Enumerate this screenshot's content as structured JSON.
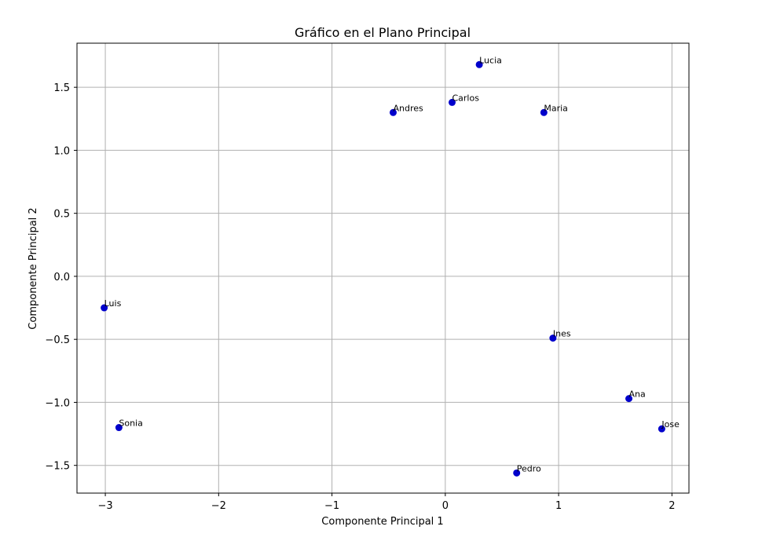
{
  "chart_data": {
    "type": "scatter",
    "title": "Gráfico en el Plano Principal",
    "xlabel": "Componente Principal 1",
    "ylabel": "Componente Principal 2",
    "xlim": [
      -3.25,
      2.15
    ],
    "ylim": [
      -1.72,
      1.85
    ],
    "xticks": [
      -3,
      -2,
      -1,
      0,
      1,
      2
    ],
    "xtick_labels": [
      "−3",
      "−2",
      "−1",
      "0",
      "1",
      "2"
    ],
    "yticks": [
      -1.5,
      -1.0,
      -0.5,
      0.0,
      0.5,
      1.0,
      1.5
    ],
    "ytick_labels": [
      "−1.5",
      "−1.0",
      "−0.5",
      "0.0",
      "0.5",
      "1.0",
      "1.5"
    ],
    "grid": true,
    "marker_color": "#0000cc",
    "points": [
      {
        "label": "Lucia",
        "x": 0.3,
        "y": 1.68
      },
      {
        "label": "Carlos",
        "x": 0.06,
        "y": 1.38
      },
      {
        "label": "Andres",
        "x": -0.46,
        "y": 1.3
      },
      {
        "label": "Maria",
        "x": 0.87,
        "y": 1.3
      },
      {
        "label": "Luis",
        "x": -3.01,
        "y": -0.25
      },
      {
        "label": "Ines",
        "x": 0.95,
        "y": -0.49
      },
      {
        "label": "Ana",
        "x": 1.62,
        "y": -0.97
      },
      {
        "label": "Sonia",
        "x": -2.88,
        "y": -1.2
      },
      {
        "label": "Jose",
        "x": 1.91,
        "y": -1.21
      },
      {
        "label": "Pedro",
        "x": 0.63,
        "y": -1.56
      }
    ]
  }
}
